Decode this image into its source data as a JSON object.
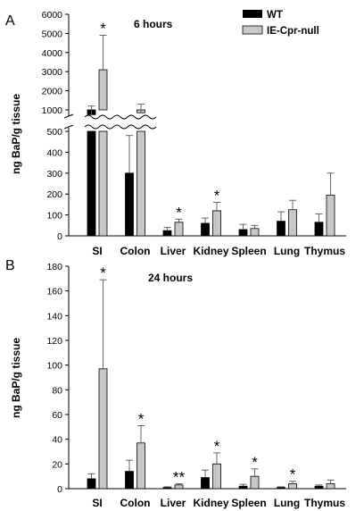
{
  "legend": [
    {
      "name": "WT",
      "color": "#000000"
    },
    {
      "name": "IE-Cpr-null",
      "color": "#c8c8c8"
    }
  ],
  "chart_data": [
    {
      "type": "bar",
      "panel": "A",
      "title": "6 hours",
      "ylabel": "ng BaP/g tissue",
      "categories": [
        "SI",
        "Colon",
        "Liver",
        "Kidney",
        "Spleen",
        "Lung",
        "Thymus"
      ],
      "broken_axis": true,
      "lower_ylim": [
        0,
        500
      ],
      "lower_ticks": [
        0,
        100,
        200,
        300,
        400,
        500
      ],
      "upper_ylim": [
        1000,
        6000
      ],
      "upper_ticks": [
        1000,
        2000,
        3000,
        4000,
        5000,
        6000
      ],
      "series": [
        {
          "name": "WT",
          "values": [
            750,
            300,
            25,
            60,
            30,
            70,
            65
          ],
          "errors": [
            450,
            180,
            15,
            25,
            25,
            45,
            40
          ]
        },
        {
          "name": "IE-Cpr-null",
          "values": [
            3100,
            850,
            65,
            120,
            35,
            125,
            195
          ],
          "errors": [
            1800,
            450,
            15,
            40,
            15,
            45,
            105
          ]
        }
      ],
      "annotations": [
        {
          "category": "SI",
          "series": "IE-Cpr-null",
          "text": "*"
        },
        {
          "category": "Liver",
          "series": "IE-Cpr-null",
          "text": "*"
        },
        {
          "category": "Kidney",
          "series": "IE-Cpr-null",
          "text": "*"
        }
      ]
    },
    {
      "type": "bar",
      "panel": "B",
      "title": "24 hours",
      "ylabel": "ng BaP/g tissue",
      "categories": [
        "SI",
        "Colon",
        "Liver",
        "Kidney",
        "Spleen",
        "Lung",
        "Thymus"
      ],
      "ylim": [
        0,
        180
      ],
      "yticks": [
        0,
        20,
        40,
        60,
        80,
        100,
        120,
        140,
        160,
        180
      ],
      "series": [
        {
          "name": "WT",
          "values": [
            8,
            14,
            1,
            9,
            2,
            1,
            2
          ],
          "errors": [
            4,
            9,
            0.5,
            6,
            1.5,
            0.5,
            1
          ]
        },
        {
          "name": "IE-Cpr-null",
          "values": [
            97,
            37,
            3,
            20,
            10,
            4,
            4
          ],
          "errors": [
            72,
            14,
            1,
            9,
            6,
            2,
            3
          ]
        }
      ],
      "annotations": [
        {
          "category": "SI",
          "series": "IE-Cpr-null",
          "text": "*"
        },
        {
          "category": "Colon",
          "series": "IE-Cpr-null",
          "text": "*"
        },
        {
          "category": "Liver",
          "series": "IE-Cpr-null",
          "text": "**"
        },
        {
          "category": "Kidney",
          "series": "IE-Cpr-null",
          "text": "*"
        },
        {
          "category": "Spleen",
          "series": "IE-Cpr-null",
          "text": "*"
        },
        {
          "category": "Lung",
          "series": "IE-Cpr-null",
          "text": "*"
        }
      ]
    }
  ]
}
